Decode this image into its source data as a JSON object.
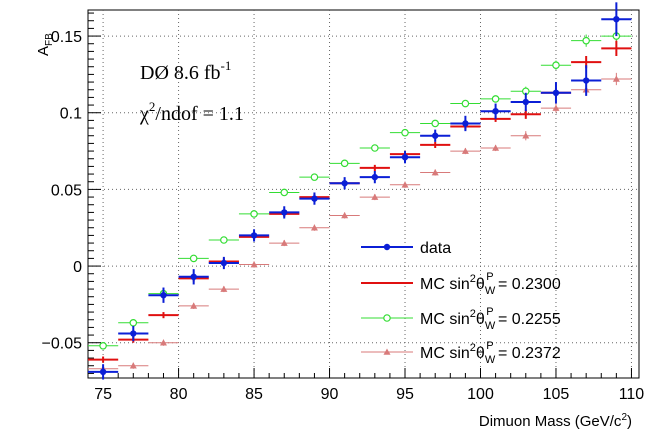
{
  "chart_data": {
    "type": "scatter",
    "title": "",
    "xlabel": "Dimuon Mass (GeV/c²)",
    "ylabel": "A_FB",
    "xlim": [
      74,
      110.5
    ],
    "ylim": [
      -0.073,
      0.167
    ],
    "grid": true,
    "legend_position": "bottom-right",
    "x_ticks": [
      75,
      80,
      85,
      90,
      95,
      100,
      105,
      110
    ],
    "y_ticks": [
      -0.05,
      0,
      0.05,
      0.1,
      0.15
    ],
    "y_tick_labels": [
      "−0.05",
      "0",
      "0.05",
      "0.1",
      "0.15"
    ],
    "annotations": {
      "experiment": "DØ 8.6 fb",
      "luminosity_exp": "-1",
      "fit_label": "/ndof = 1.1"
    },
    "x": [
      75,
      77,
      79,
      81,
      83,
      85,
      87,
      89,
      91,
      93,
      95,
      97,
      99,
      101,
      103,
      105,
      107,
      109
    ],
    "bin_halfwidth": 1,
    "series": [
      {
        "name": "data",
        "style": "data",
        "color": "#0b1fd6",
        "values": [
          -0.069,
          -0.044,
          -0.019,
          -0.007,
          0.002,
          0.02,
          0.035,
          0.044,
          0.054,
          0.058,
          0.071,
          0.085,
          0.093,
          0.101,
          0.107,
          0.113,
          0.121,
          0.161
        ],
        "errors": [
          0.005,
          0.005,
          0.005,
          0.005,
          0.004,
          0.004,
          0.004,
          0.004,
          0.004,
          0.004,
          0.004,
          0.004,
          0.005,
          0.005,
          0.006,
          0.007,
          0.01,
          0.011
        ]
      },
      {
        "name": "MC sin²θ_W^P = 0.2300",
        "style": "line",
        "color": "#e01010",
        "values": [
          -0.061,
          -0.048,
          -0.032,
          -0.008,
          0.003,
          0.019,
          0.034,
          0.045,
          0.054,
          0.064,
          0.073,
          0.079,
          0.091,
          0.096,
          0.099,
          0.113,
          0.133,
          0.142
        ],
        "errors": [
          0.002,
          0.002,
          0.002,
          0.002,
          0.002,
          0.002,
          0.002,
          0.002,
          0.002,
          0.002,
          0.002,
          0.002,
          0.002,
          0.002,
          0.003,
          0.003,
          0.004,
          0.005
        ]
      },
      {
        "name": "MC sin²θ_W^P = 0.2255",
        "style": "circle",
        "color": "#33dd33",
        "values": [
          -0.052,
          -0.037,
          -0.018,
          0.005,
          0.017,
          0.034,
          0.048,
          0.058,
          0.067,
          0.077,
          0.087,
          0.093,
          0.106,
          0.109,
          0.114,
          0.131,
          0.147,
          0.15
        ],
        "errors": [
          0.002,
          0.002,
          0.002,
          0.002,
          0.002,
          0.002,
          0.002,
          0.002,
          0.002,
          0.002,
          0.002,
          0.002,
          0.002,
          0.002,
          0.003,
          0.003,
          0.004,
          0.004
        ]
      },
      {
        "name": "MC sin²θ_W^P = 0.2372",
        "style": "triangle",
        "color": "#d87a7a",
        "values": [
          -0.067,
          -0.065,
          -0.05,
          -0.026,
          -0.015,
          0.001,
          0.015,
          0.025,
          0.033,
          0.045,
          0.053,
          0.061,
          0.075,
          0.077,
          0.085,
          0.103,
          0.115,
          0.122
        ],
        "errors": [
          0.002,
          0.002,
          0.002,
          0.002,
          0.002,
          0.002,
          0.002,
          0.002,
          0.002,
          0.002,
          0.002,
          0.002,
          0.002,
          0.002,
          0.003,
          0.003,
          0.004,
          0.004
        ]
      }
    ],
    "legend": [
      {
        "prefix": "data",
        "value": "",
        "style": "data",
        "color": "#0b1fd6"
      },
      {
        "prefix": "MC sin",
        "value": " = 0.2300",
        "style": "line",
        "color": "#e01010"
      },
      {
        "prefix": "MC sin",
        "value": " = 0.2255",
        "style": "circle",
        "color": "#33dd33"
      },
      {
        "prefix": "MC sin",
        "value": " = 0.2372",
        "style": "triangle",
        "color": "#d87a7a"
      }
    ]
  }
}
